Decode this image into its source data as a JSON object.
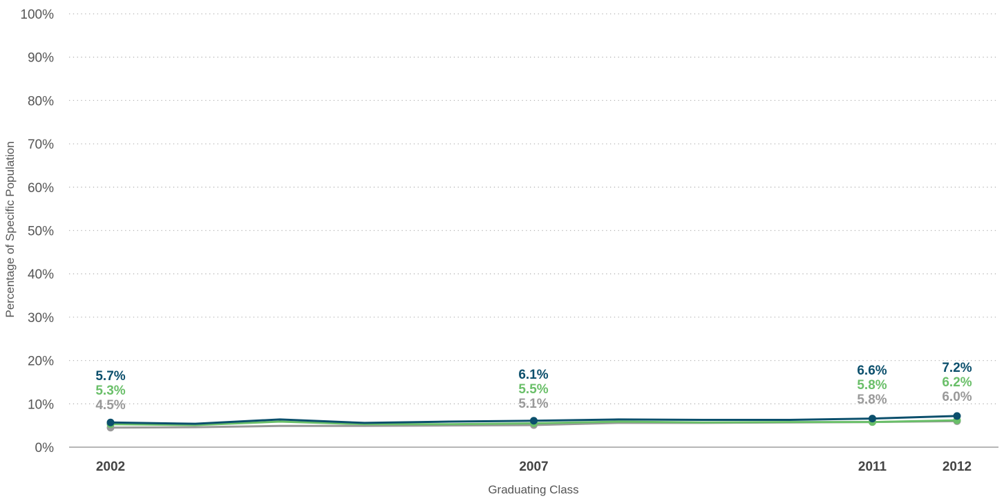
{
  "chart_data": {
    "type": "line",
    "xlabel": "Graduating Class",
    "ylabel": "Percentage of Specific Population",
    "x": [
      2002,
      2003,
      2004,
      2005,
      2006,
      2007,
      2008,
      2009,
      2010,
      2011,
      2012
    ],
    "x_tick_labels": [
      "2002",
      "2007",
      "2011",
      "2012"
    ],
    "ylim": [
      0,
      100
    ],
    "y_ticks": [
      0,
      10,
      20,
      30,
      40,
      50,
      60,
      70,
      80,
      90,
      100
    ],
    "y_tick_suffix": "%",
    "grid": "horizontal dotted",
    "series": [
      {
        "color": "#0b4f6c",
        "values": [
          5.7,
          5.4,
          6.4,
          5.6,
          5.9,
          6.1,
          6.4,
          6.3,
          6.3,
          6.6,
          7.2
        ],
        "labeled_points": [
          {
            "x": 2002,
            "label": "5.7%"
          },
          {
            "x": 2007,
            "label": "6.1%"
          },
          {
            "x": 2011,
            "label": "6.6%"
          },
          {
            "x": 2012,
            "label": "7.2%"
          }
        ]
      },
      {
        "color": "#6abf69",
        "values": [
          5.3,
          5.1,
          5.9,
          5.3,
          5.3,
          5.5,
          5.9,
          5.7,
          5.8,
          5.8,
          6.2
        ],
        "labeled_points": [
          {
            "x": 2002,
            "label": "5.3%"
          },
          {
            "x": 2007,
            "label": "5.5%"
          },
          {
            "x": 2011,
            "label": "5.8%"
          },
          {
            "x": 2012,
            "label": "6.2%"
          }
        ]
      },
      {
        "color": "#999999",
        "values": [
          4.5,
          4.6,
          4.9,
          4.9,
          5.0,
          5.1,
          5.6,
          5.6,
          5.7,
          5.8,
          6.0
        ],
        "labeled_points": [
          {
            "x": 2002,
            "label": "4.5%"
          },
          {
            "x": 2007,
            "label": "5.1%"
          },
          {
            "x": 2011,
            "label": "5.8%"
          },
          {
            "x": 2012,
            "label": "6.0%"
          }
        ]
      }
    ]
  }
}
